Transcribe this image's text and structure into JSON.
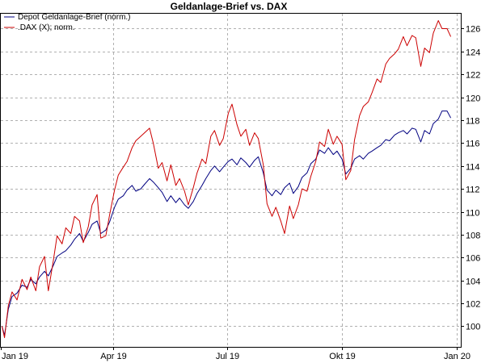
{
  "chart_data": {
    "type": "line",
    "title": "Geldanlage-Brief vs. DAX",
    "xlabel": "",
    "ylabel": "",
    "xlim": [
      "2019-01-01",
      "2020-01-04"
    ],
    "ylim": [
      98.2,
      127.3
    ],
    "x_ticks": [
      {
        "date": "2019-01-01",
        "label": "Jan 19"
      },
      {
        "date": "2019-04-01",
        "label": "Apr 19"
      },
      {
        "date": "2019-07-01",
        "label": "Jul 19"
      },
      {
        "date": "2019-10-01",
        "label": "Okt 19"
      },
      {
        "date": "2020-01-01",
        "label": "Jan 20"
      }
    ],
    "y_ticks": [
      100,
      102,
      104,
      106,
      108,
      110,
      112,
      114,
      116,
      118,
      120,
      122,
      124,
      126
    ],
    "grid": true,
    "legend_position": "top-left",
    "series": [
      {
        "name": "Depot Geldanlage-Brief (norm.)",
        "color": "#000080",
        "points": [
          [
            "2019-01-02",
            100.0
          ],
          [
            "2019-01-04",
            99.2
          ],
          [
            "2019-01-07",
            101.5
          ],
          [
            "2019-01-10",
            102.6
          ],
          [
            "2019-01-14",
            102.9
          ],
          [
            "2019-01-18",
            103.6
          ],
          [
            "2019-01-22",
            103.4
          ],
          [
            "2019-01-25",
            104.1
          ],
          [
            "2019-01-29",
            103.7
          ],
          [
            "2019-02-01",
            104.3
          ],
          [
            "2019-02-05",
            104.8
          ],
          [
            "2019-02-08",
            104.4
          ],
          [
            "2019-02-12",
            105.3
          ],
          [
            "2019-02-15",
            106.1
          ],
          [
            "2019-02-19",
            106.4
          ],
          [
            "2019-02-22",
            106.6
          ],
          [
            "2019-02-26",
            107.1
          ],
          [
            "2019-03-01",
            107.6
          ],
          [
            "2019-03-05",
            108.1
          ],
          [
            "2019-03-08",
            107.4
          ],
          [
            "2019-03-12",
            108.2
          ],
          [
            "2019-03-15",
            108.9
          ],
          [
            "2019-03-19",
            109.2
          ],
          [
            "2019-03-22",
            108.1
          ],
          [
            "2019-03-26",
            108.4
          ],
          [
            "2019-03-29",
            109.1
          ],
          [
            "2019-04-02",
            110.4
          ],
          [
            "2019-04-05",
            111.1
          ],
          [
            "2019-04-09",
            111.4
          ],
          [
            "2019-04-12",
            111.9
          ],
          [
            "2019-04-16",
            112.3
          ],
          [
            "2019-04-19",
            111.8
          ],
          [
            "2019-04-23",
            112.0
          ],
          [
            "2019-04-26",
            112.4
          ],
          [
            "2019-04-30",
            112.9
          ],
          [
            "2019-05-03",
            112.6
          ],
          [
            "2019-05-07",
            112.1
          ],
          [
            "2019-05-10",
            111.7
          ],
          [
            "2019-05-14",
            110.9
          ],
          [
            "2019-05-17",
            111.4
          ],
          [
            "2019-05-21",
            110.8
          ],
          [
            "2019-05-24",
            111.2
          ],
          [
            "2019-05-28",
            110.6
          ],
          [
            "2019-05-31",
            110.3
          ],
          [
            "2019-06-04",
            110.9
          ],
          [
            "2019-06-07",
            111.6
          ],
          [
            "2019-06-11",
            112.3
          ],
          [
            "2019-06-14",
            112.9
          ],
          [
            "2019-06-18",
            113.6
          ],
          [
            "2019-06-21",
            114.0
          ],
          [
            "2019-06-25",
            113.5
          ],
          [
            "2019-06-28",
            113.9
          ],
          [
            "2019-07-02",
            114.4
          ],
          [
            "2019-07-05",
            114.6
          ],
          [
            "2019-07-09",
            114.1
          ],
          [
            "2019-07-12",
            114.7
          ],
          [
            "2019-07-16",
            114.3
          ],
          [
            "2019-07-19",
            113.9
          ],
          [
            "2019-07-23",
            114.5
          ],
          [
            "2019-07-26",
            114.8
          ],
          [
            "2019-07-30",
            113.4
          ],
          [
            "2019-08-02",
            111.9
          ],
          [
            "2019-08-06",
            111.4
          ],
          [
            "2019-08-09",
            111.9
          ],
          [
            "2019-08-13",
            111.5
          ],
          [
            "2019-08-16",
            112.1
          ],
          [
            "2019-08-20",
            112.5
          ],
          [
            "2019-08-23",
            111.6
          ],
          [
            "2019-08-27",
            112.2
          ],
          [
            "2019-08-30",
            113.0
          ],
          [
            "2019-09-03",
            113.4
          ],
          [
            "2019-09-06",
            114.2
          ],
          [
            "2019-09-10",
            114.6
          ],
          [
            "2019-09-13",
            115.4
          ],
          [
            "2019-09-17",
            115.1
          ],
          [
            "2019-09-20",
            115.6
          ],
          [
            "2019-09-24",
            115.0
          ],
          [
            "2019-09-27",
            115.3
          ],
          [
            "2019-10-01",
            114.6
          ],
          [
            "2019-10-04",
            113.3
          ],
          [
            "2019-10-08",
            113.8
          ],
          [
            "2019-10-11",
            114.6
          ],
          [
            "2019-10-15",
            114.9
          ],
          [
            "2019-10-18",
            114.6
          ],
          [
            "2019-10-22",
            115.1
          ],
          [
            "2019-10-25",
            115.3
          ],
          [
            "2019-10-29",
            115.6
          ],
          [
            "2019-11-01",
            115.8
          ],
          [
            "2019-11-05",
            116.3
          ],
          [
            "2019-11-08",
            116.2
          ],
          [
            "2019-11-12",
            116.7
          ],
          [
            "2019-11-15",
            116.9
          ],
          [
            "2019-11-19",
            117.1
          ],
          [
            "2019-11-22",
            116.8
          ],
          [
            "2019-11-26",
            117.3
          ],
          [
            "2019-11-29",
            117.2
          ],
          [
            "2019-12-03",
            116.1
          ],
          [
            "2019-12-06",
            117.1
          ],
          [
            "2019-12-10",
            116.8
          ],
          [
            "2019-12-13",
            117.7
          ],
          [
            "2019-12-17",
            118.1
          ],
          [
            "2019-12-20",
            118.8
          ],
          [
            "2019-12-24",
            118.8
          ],
          [
            "2019-12-27",
            118.2
          ]
        ]
      },
      {
        "name": ".DAX (X); norm.",
        "color": "#cc0000",
        "points": [
          [
            "2019-01-02",
            100.0
          ],
          [
            "2019-01-04",
            99.0
          ],
          [
            "2019-01-07",
            101.8
          ],
          [
            "2019-01-10",
            103.0
          ],
          [
            "2019-01-14",
            102.3
          ],
          [
            "2019-01-18",
            104.1
          ],
          [
            "2019-01-22",
            103.2
          ],
          [
            "2019-01-25",
            104.3
          ],
          [
            "2019-01-29",
            103.1
          ],
          [
            "2019-02-01",
            105.2
          ],
          [
            "2019-02-05",
            106.1
          ],
          [
            "2019-02-08",
            103.1
          ],
          [
            "2019-02-12",
            105.7
          ],
          [
            "2019-02-15",
            107.9
          ],
          [
            "2019-02-19",
            107.2
          ],
          [
            "2019-02-22",
            108.6
          ],
          [
            "2019-02-26",
            108.1
          ],
          [
            "2019-03-01",
            109.6
          ],
          [
            "2019-03-05",
            109.2
          ],
          [
            "2019-03-08",
            107.3
          ],
          [
            "2019-03-12",
            108.7
          ],
          [
            "2019-03-15",
            110.6
          ],
          [
            "2019-03-19",
            111.5
          ],
          [
            "2019-03-22",
            107.7
          ],
          [
            "2019-03-26",
            107.9
          ],
          [
            "2019-03-29",
            109.7
          ],
          [
            "2019-04-02",
            111.9
          ],
          [
            "2019-04-05",
            113.2
          ],
          [
            "2019-04-09",
            113.9
          ],
          [
            "2019-04-12",
            114.4
          ],
          [
            "2019-04-16",
            115.6
          ],
          [
            "2019-04-19",
            116.2
          ],
          [
            "2019-04-23",
            116.6
          ],
          [
            "2019-04-26",
            116.9
          ],
          [
            "2019-04-30",
            117.3
          ],
          [
            "2019-05-03",
            116.0
          ],
          [
            "2019-05-07",
            113.8
          ],
          [
            "2019-05-10",
            114.3
          ],
          [
            "2019-05-14",
            112.7
          ],
          [
            "2019-05-17",
            114.1
          ],
          [
            "2019-05-21",
            112.3
          ],
          [
            "2019-05-24",
            112.9
          ],
          [
            "2019-05-28",
            111.8
          ],
          [
            "2019-05-31",
            110.6
          ],
          [
            "2019-06-04",
            112.1
          ],
          [
            "2019-06-07",
            113.4
          ],
          [
            "2019-06-11",
            114.6
          ],
          [
            "2019-06-14",
            114.2
          ],
          [
            "2019-06-18",
            116.6
          ],
          [
            "2019-06-21",
            117.1
          ],
          [
            "2019-06-25",
            115.8
          ],
          [
            "2019-06-28",
            116.4
          ],
          [
            "2019-07-02",
            118.6
          ],
          [
            "2019-07-05",
            119.4
          ],
          [
            "2019-07-09",
            117.6
          ],
          [
            "2019-07-12",
            116.6
          ],
          [
            "2019-07-16",
            117.2
          ],
          [
            "2019-07-19",
            115.8
          ],
          [
            "2019-07-23",
            116.9
          ],
          [
            "2019-07-26",
            116.4
          ],
          [
            "2019-07-30",
            114.1
          ],
          [
            "2019-08-02",
            110.7
          ],
          [
            "2019-08-06",
            109.6
          ],
          [
            "2019-08-09",
            110.4
          ],
          [
            "2019-08-13",
            109.2
          ],
          [
            "2019-08-16",
            108.1
          ],
          [
            "2019-08-20",
            110.5
          ],
          [
            "2019-08-23",
            109.4
          ],
          [
            "2019-08-27",
            110.6
          ],
          [
            "2019-08-30",
            112.0
          ],
          [
            "2019-09-03",
            111.8
          ],
          [
            "2019-09-06",
            113.1
          ],
          [
            "2019-09-10",
            114.4
          ],
          [
            "2019-09-13",
            116.1
          ],
          [
            "2019-09-17",
            115.7
          ],
          [
            "2019-09-20",
            117.2
          ],
          [
            "2019-09-24",
            115.9
          ],
          [
            "2019-09-27",
            116.6
          ],
          [
            "2019-10-01",
            115.9
          ],
          [
            "2019-10-04",
            112.8
          ],
          [
            "2019-10-08",
            113.6
          ],
          [
            "2019-10-11",
            116.3
          ],
          [
            "2019-10-15",
            118.4
          ],
          [
            "2019-10-18",
            119.2
          ],
          [
            "2019-10-22",
            119.6
          ],
          [
            "2019-10-25",
            120.4
          ],
          [
            "2019-10-29",
            121.6
          ],
          [
            "2019-11-01",
            121.3
          ],
          [
            "2019-11-05",
            122.9
          ],
          [
            "2019-11-08",
            123.4
          ],
          [
            "2019-11-12",
            123.8
          ],
          [
            "2019-11-15",
            124.2
          ],
          [
            "2019-11-19",
            125.3
          ],
          [
            "2019-11-22",
            124.5
          ],
          [
            "2019-11-26",
            125.4
          ],
          [
            "2019-11-29",
            125.2
          ],
          [
            "2019-12-03",
            122.7
          ],
          [
            "2019-12-06",
            124.3
          ],
          [
            "2019-12-10",
            123.9
          ],
          [
            "2019-12-13",
            125.6
          ],
          [
            "2019-12-17",
            126.7
          ],
          [
            "2019-12-20",
            126.0
          ],
          [
            "2019-12-24",
            126.0
          ],
          [
            "2019-12-27",
            125.3
          ]
        ]
      }
    ]
  }
}
